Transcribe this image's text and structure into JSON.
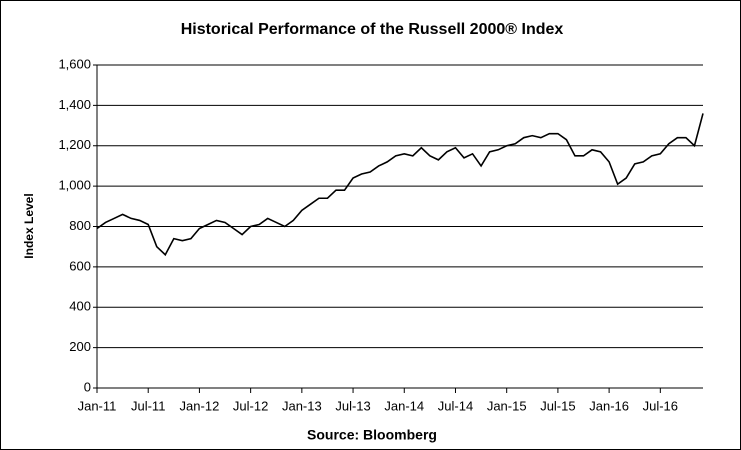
{
  "chart_data": {
    "type": "line",
    "title": "Historical Performance of the Russell 2000® Index",
    "y_label": "Index Level",
    "x_label": "Source: Bloomberg",
    "categories": [
      "Jan-11",
      null,
      null,
      null,
      null,
      null,
      "Jul-11",
      null,
      null,
      null,
      null,
      null,
      "Jan-12",
      null,
      null,
      null,
      null,
      null,
      "Jul-12",
      null,
      null,
      null,
      null,
      null,
      "Jan-13",
      null,
      null,
      null,
      null,
      null,
      "Jul-13",
      null,
      null,
      null,
      null,
      null,
      "Jan-14",
      null,
      null,
      null,
      null,
      null,
      "Jul-14",
      null,
      null,
      null,
      null,
      null,
      "Jan-15",
      null,
      null,
      null,
      null,
      null,
      "Jul-15",
      null,
      null,
      null,
      null,
      null,
      "Jan-16",
      null,
      null,
      null,
      null,
      null,
      "Jul-16",
      null,
      null,
      null,
      null,
      null
    ],
    "series": [
      {
        "name": "Russell 2000",
        "color": "#000000",
        "values": [
          790,
          820,
          840,
          860,
          840,
          830,
          810,
          700,
          660,
          740,
          730,
          740,
          790,
          810,
          830,
          820,
          790,
          760,
          800,
          810,
          840,
          820,
          800,
          830,
          880,
          910,
          940,
          940,
          980,
          980,
          1040,
          1060,
          1070,
          1100,
          1120,
          1150,
          1160,
          1150,
          1190,
          1150,
          1130,
          1170,
          1190,
          1140,
          1160,
          1100,
          1170,
          1180,
          1200,
          1210,
          1240,
          1250,
          1240,
          1260,
          1260,
          1230,
          1150,
          1150,
          1180,
          1170,
          1120,
          1010,
          1040,
          1110,
          1120,
          1150,
          1160,
          1210,
          1240,
          1240,
          1200,
          1360
        ]
      }
    ],
    "ylim": [
      0,
      1600
    ],
    "yticks": [
      0,
      200,
      400,
      600,
      800,
      {
        "value": 1000,
        "label": "1,000"
      },
      {
        "value": 1200,
        "label": "1,200"
      },
      {
        "value": 1400,
        "label": "1,400"
      },
      {
        "value": 1600,
        "label": "1,600"
      }
    ],
    "grid": true
  }
}
